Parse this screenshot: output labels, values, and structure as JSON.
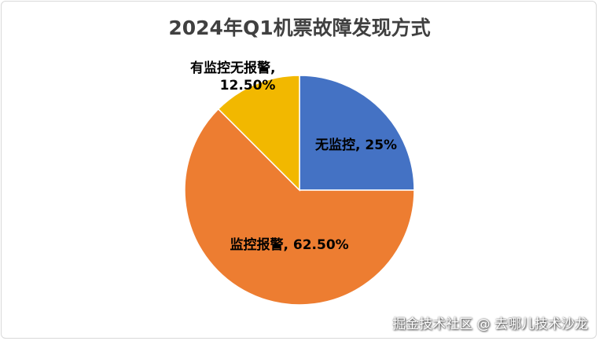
{
  "chart_data": {
    "type": "pie",
    "title": "2024年Q1机票故障发现方式",
    "categories": [
      "无监控",
      "监控报警",
      "有监控无报警"
    ],
    "values": [
      25,
      62.5,
      12.5
    ],
    "value_labels": [
      "无监控, 25%",
      "监控报警, 62.50%",
      "有监控无报警,\n12.50%"
    ],
    "colors": [
      "#4472c4",
      "#ed7d31",
      "#f2b800"
    ],
    "start_angle": 0,
    "direction": "clockwise"
  },
  "watermark": "掘金技术社区 @ 去哪儿技术沙龙"
}
